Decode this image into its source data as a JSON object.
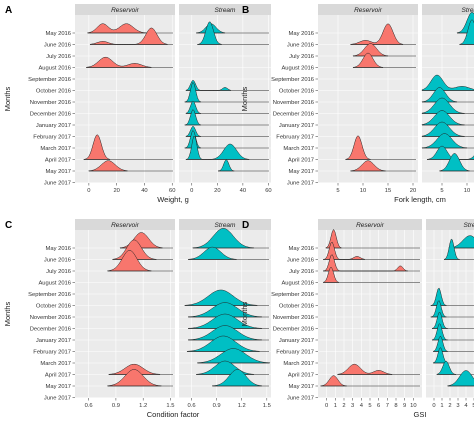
{
  "colors": {
    "reservoir": "#f8766d",
    "stream": "#00bfc4",
    "strip": "#d9d9d9",
    "panel_bg": "#ebebeb",
    "grid": "#ffffff"
  },
  "months": [
    "May 2016",
    "June 2016",
    "July 2016",
    "August 2016",
    "September 2016",
    "October 2016",
    "November 2016",
    "December 2016",
    "January 2017",
    "February 2017",
    "March 2017",
    "April 2017",
    "May 2017",
    "June 2017"
  ],
  "chart_data": [
    {
      "type": "ridgeline",
      "panel_label": "A",
      "facets": [
        "Reservoir",
        "Stream"
      ],
      "xlabel": "Weight, g",
      "ylabel": "Months",
      "xlim": [
        -10,
        62
      ],
      "xticks": [
        0,
        20,
        40,
        60
      ],
      "series": [
        {
          "facet": "Reservoir",
          "month": "May 2016",
          "peaks": [
            [
              10,
              4,
              0.9
            ],
            [
              27,
              5,
              0.9
            ]
          ]
        },
        {
          "facet": "Reservoir",
          "month": "June 2016",
          "peaks": [
            [
              45,
              4,
              1.6
            ],
            [
              10,
              4,
              0.3
            ]
          ]
        },
        {
          "facet": "Reservoir",
          "month": "August 2016",
          "peaks": [
            [
              12,
              5,
              1.0
            ],
            [
              33,
              5,
              0.4
            ]
          ]
        },
        {
          "facet": "Reservoir",
          "month": "April 2017",
          "peaks": [
            [
              6,
              3,
              2.4
            ]
          ]
        },
        {
          "facet": "Reservoir",
          "month": "May 2017",
          "peaks": [
            [
              14,
              5,
              1.0
            ]
          ]
        },
        {
          "facet": "Stream",
          "month": "May 2016",
          "peaks": [
            [
              15,
              4,
              0.9
            ]
          ]
        },
        {
          "facet": "Stream",
          "month": "June 2016",
          "peaks": [
            [
              14,
              3,
              2.2
            ]
          ]
        },
        {
          "facet": "Stream",
          "month": "October 2016",
          "peaks": [
            [
              1,
              2,
              1.0
            ],
            [
              26,
              2,
              0.3
            ]
          ]
        },
        {
          "facet": "Stream",
          "month": "November 2016",
          "peaks": [
            [
              1,
              2,
              1.9
            ]
          ]
        },
        {
          "facet": "Stream",
          "month": "December 2016",
          "peaks": [
            [
              1,
              2,
              1.2
            ]
          ]
        },
        {
          "facet": "Stream",
          "month": "January 2017",
          "peaks": [
            [
              1,
              2,
              1.5
            ]
          ]
        },
        {
          "facet": "Stream",
          "month": "February 2017",
          "peaks": [
            [
              1,
              2,
              1.0
            ]
          ]
        },
        {
          "facet": "Stream",
          "month": "March 2017",
          "peaks": [
            [
              1,
              2,
              1.7
            ]
          ]
        },
        {
          "facet": "Stream",
          "month": "April 2017",
          "peaks": [
            [
              2,
              2,
              2.3
            ],
            [
              30,
              5,
              1.5
            ]
          ]
        },
        {
          "facet": "Stream",
          "month": "May 2017",
          "peaks": [
            [
              27,
              2,
              1.1
            ]
          ]
        }
      ]
    },
    {
      "type": "ridgeline",
      "panel_label": "B",
      "facets": [
        "Reservoir",
        "Stream"
      ],
      "xlabel": "Fork length, cm",
      "ylabel": "Months",
      "xlim": [
        1,
        21
      ],
      "xticks": [
        5,
        10,
        15,
        20
      ],
      "series": [
        {
          "facet": "Reservoir",
          "month": "June 2016",
          "peaks": [
            [
              15,
              1,
              2.0
            ],
            [
              10.5,
              1.2,
              0.4
            ]
          ]
        },
        {
          "facet": "Reservoir",
          "month": "July 2016",
          "peaks": [
            [
              11.5,
              1.2,
              1.2
            ]
          ]
        },
        {
          "facet": "Reservoir",
          "month": "August 2016",
          "peaks": [
            [
              11,
              1,
              1.4
            ]
          ]
        },
        {
          "facet": "Reservoir",
          "month": "April 2017",
          "peaks": [
            [
              9,
              0.8,
              2.3
            ]
          ]
        },
        {
          "facet": "Reservoir",
          "month": "May 2017",
          "peaks": [
            [
              11,
              1.2,
              1.0
            ]
          ]
        },
        {
          "facet": "Stream",
          "month": "May 2016",
          "peaks": [
            [
              11,
              1,
              2.0
            ]
          ]
        },
        {
          "facet": "Stream",
          "month": "June 2016",
          "peaks": [
            [
              11,
              0.8,
              2.4
            ]
          ]
        },
        {
          "facet": "Stream",
          "month": "October 2016",
          "peaks": [
            [
              4,
              1.2,
              1.5
            ],
            [
              9,
              1.5,
              0.4
            ]
          ]
        },
        {
          "facet": "Stream",
          "month": "November 2016",
          "peaks": [
            [
              4.5,
              1.2,
              1.4
            ]
          ]
        },
        {
          "facet": "Stream",
          "month": "December 2016",
          "peaks": [
            [
              5,
              1.5,
              1.5
            ]
          ]
        },
        {
          "facet": "Stream",
          "month": "January 2017",
          "peaks": [
            [
              5,
              1.5,
              1.4
            ]
          ]
        },
        {
          "facet": "Stream",
          "month": "February 2017",
          "peaks": [
            [
              5,
              1.5,
              1.4
            ]
          ]
        },
        {
          "facet": "Stream",
          "month": "March 2017",
          "peaks": [
            [
              5.5,
              1.5,
              1.4
            ]
          ]
        },
        {
          "facet": "Stream",
          "month": "April 2017",
          "peaks": [
            [
              5,
              1,
              1.3
            ],
            [
              13,
              1,
              1.3
            ]
          ]
        },
        {
          "facet": "Stream",
          "month": "May 2017",
          "peaks": [
            [
              7.5,
              1,
              1.7
            ]
          ]
        }
      ]
    },
    {
      "type": "ridgeline",
      "panel_label": "C",
      "facets": [
        "Reservoir",
        "Stream"
      ],
      "xlabel": "Condition factor",
      "ylabel": "Months",
      "xlim": [
        0.45,
        1.55
      ],
      "xticks": [
        0.6,
        0.9,
        1.2,
        1.5
      ],
      "series": [
        {
          "facet": "Reservoir",
          "month": "May 2016",
          "peaks": [
            [
              1.18,
              0.08,
              1.5
            ]
          ]
        },
        {
          "facet": "Reservoir",
          "month": "June 2016",
          "peaks": [
            [
              1.1,
              0.08,
              1.9
            ]
          ]
        },
        {
          "facet": "Reservoir",
          "month": "July 2016",
          "peaks": [
            [
              1.05,
              0.08,
              2.0
            ]
          ]
        },
        {
          "facet": "Reservoir",
          "month": "April 2017",
          "peaks": [
            [
              1.1,
              0.1,
              1.0
            ]
          ]
        },
        {
          "facet": "Reservoir",
          "month": "May 2017",
          "peaks": [
            [
              1.1,
              0.1,
              1.6
            ]
          ]
        },
        {
          "facet": "Stream",
          "month": "May 2016",
          "peaks": [
            [
              0.98,
              0.12,
              1.9
            ]
          ]
        },
        {
          "facet": "Stream",
          "month": "June 2016",
          "peaks": [
            [
              0.85,
              0.1,
              1.2
            ]
          ]
        },
        {
          "facet": "Stream",
          "month": "October 2016",
          "peaks": [
            [
              0.95,
              0.15,
              1.5
            ]
          ]
        },
        {
          "facet": "Stream",
          "month": "November 2016",
          "peaks": [
            [
              1.0,
              0.15,
              1.4
            ]
          ]
        },
        {
          "facet": "Stream",
          "month": "December 2016",
          "peaks": [
            [
              1.0,
              0.15,
              1.4
            ]
          ]
        },
        {
          "facet": "Stream",
          "month": "January 2017",
          "peaks": [
            [
              1.0,
              0.15,
              1.4
            ]
          ]
        },
        {
          "facet": "Stream",
          "month": "February 2017",
          "peaks": [
            [
              0.98,
              0.15,
              1.5
            ]
          ]
        },
        {
          "facet": "Stream",
          "month": "March 2017",
          "peaks": [
            [
              1.1,
              0.15,
              1.4
            ]
          ]
        },
        {
          "facet": "Stream",
          "month": "April 2017",
          "peaks": [
            [
              1.0,
              0.12,
              1.3
            ]
          ]
        },
        {
          "facet": "Stream",
          "month": "May 2017",
          "peaks": [
            [
              1.15,
              0.1,
              1.6
            ]
          ]
        }
      ]
    },
    {
      "type": "ridgeline",
      "panel_label": "D",
      "facets": [
        "Reservoir",
        "Stream"
      ],
      "xlabel": "GSI",
      "ylabel": "Months",
      "xlim": [
        -1,
        11
      ],
      "xticks": [
        0,
        1,
        2,
        3,
        4,
        5,
        6,
        7,
        8,
        9,
        10
      ],
      "series": [
        {
          "facet": "Reservoir",
          "month": "May 2016",
          "peaks": [
            [
              0.8,
              0.3,
              1.8
            ]
          ]
        },
        {
          "facet": "Reservoir",
          "month": "June 2016",
          "peaks": [
            [
              0.6,
              0.3,
              1.7
            ],
            [
              3.5,
              0.4,
              0.3
            ]
          ]
        },
        {
          "facet": "Reservoir",
          "month": "July 2016",
          "peaks": [
            [
              0.6,
              0.3,
              1.6
            ],
            [
              8.5,
              0.3,
              0.5
            ]
          ]
        },
        {
          "facet": "Reservoir",
          "month": "August 2016",
          "peaks": [
            [
              0.5,
              0.3,
              1.5
            ]
          ]
        },
        {
          "facet": "Reservoir",
          "month": "April 2017",
          "peaks": [
            [
              3.2,
              0.7,
              1.0
            ],
            [
              6,
              0.6,
              0.4
            ]
          ]
        },
        {
          "facet": "Reservoir",
          "month": "May 2017",
          "peaks": [
            [
              0.8,
              0.5,
              1.0
            ]
          ]
        },
        {
          "facet": "Stream",
          "month": "May 2016",
          "peaks": [
            [
              4.5,
              0.9,
              1.2
            ],
            [
              9,
              0.3,
              0.2
            ]
          ]
        },
        {
          "facet": "Stream",
          "month": "June 2016",
          "peaks": [
            [
              2.2,
              0.3,
              2.0
            ]
          ]
        },
        {
          "facet": "Stream",
          "month": "October 2016",
          "peaks": [
            [
              0.6,
              0.3,
              1.7
            ]
          ]
        },
        {
          "facet": "Stream",
          "month": "November 2016",
          "peaks": [
            [
              0.6,
              0.3,
              1.6
            ]
          ]
        },
        {
          "facet": "Stream",
          "month": "December 2016",
          "peaks": [
            [
              0.7,
              0.3,
              1.6
            ]
          ]
        },
        {
          "facet": "Stream",
          "month": "January 2017",
          "peaks": [
            [
              0.7,
              0.3,
              1.6
            ]
          ]
        },
        {
          "facet": "Stream",
          "month": "February 2017",
          "peaks": [
            [
              0.8,
              0.3,
              1.5
            ]
          ]
        },
        {
          "facet": "Stream",
          "month": "March 2017",
          "peaks": [
            [
              0.8,
              0.3,
              1.5
            ]
          ]
        },
        {
          "facet": "Stream",
          "month": "April 2017",
          "peaks": [
            [
              1.5,
              0.4,
              1.3
            ]
          ]
        },
        {
          "facet": "Stream",
          "month": "May 2017",
          "peaks": [
            [
              4,
              0.8,
              1.5
            ]
          ]
        }
      ]
    }
  ]
}
